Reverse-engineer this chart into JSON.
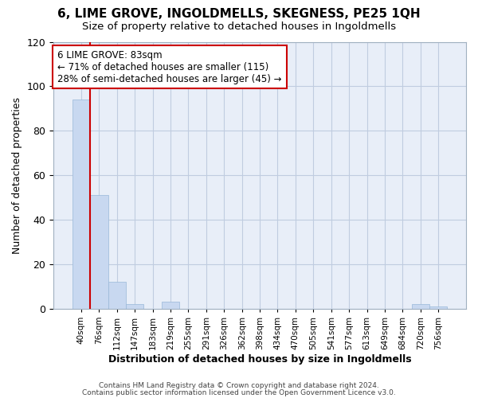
{
  "title": "6, LIME GROVE, INGOLDMELLS, SKEGNESS, PE25 1QH",
  "subtitle": "Size of property relative to detached houses in Ingoldmells",
  "xlabel": "Distribution of detached houses by size in Ingoldmells",
  "ylabel": "Number of detached properties",
  "bin_labels": [
    "40sqm",
    "76sqm",
    "112sqm",
    "147sqm",
    "183sqm",
    "219sqm",
    "255sqm",
    "291sqm",
    "326sqm",
    "362sqm",
    "398sqm",
    "434sqm",
    "470sqm",
    "505sqm",
    "541sqm",
    "577sqm",
    "613sqm",
    "649sqm",
    "684sqm",
    "720sqm",
    "756sqm"
  ],
  "bar_heights": [
    94,
    51,
    12,
    2,
    0,
    3,
    0,
    0,
    0,
    0,
    0,
    0,
    0,
    0,
    0,
    0,
    0,
    0,
    0,
    2,
    1
  ],
  "bar_color": "#c8d8f0",
  "bar_edge_color": "#99b8d8",
  "grid_color": "#c0cce0",
  "background_color": "#ffffff",
  "plot_bg_color": "#e8eef8",
  "red_line_color": "#cc0000",
  "annotation_text": "6 LIME GROVE: 83sqm\n← 71% of detached houses are smaller (115)\n28% of semi-detached houses are larger (45) →",
  "annotation_box_facecolor": "#ffffff",
  "annotation_box_edgecolor": "#cc0000",
  "ylim": [
    0,
    120
  ],
  "yticks": [
    0,
    20,
    40,
    60,
    80,
    100,
    120
  ],
  "footer_line1": "Contains HM Land Registry data © Crown copyright and database right 2024.",
  "footer_line2": "Contains public sector information licensed under the Open Government Licence v3.0."
}
